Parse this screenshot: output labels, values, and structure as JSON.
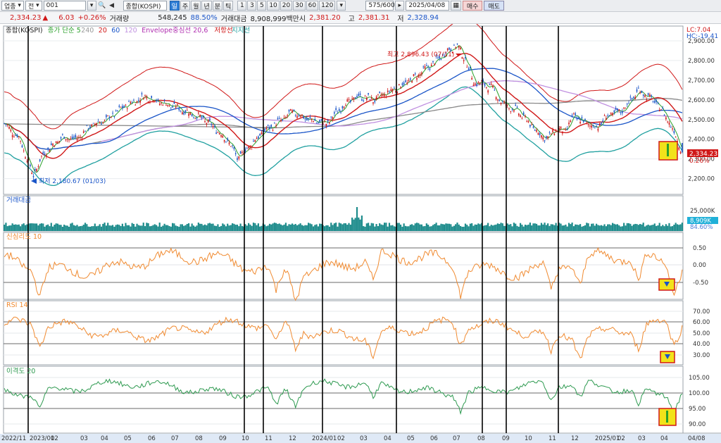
{
  "toolbar": {
    "category": "업종",
    "period": "전",
    "code": "001",
    "name": "종합(KOSPI)",
    "tabs": [
      "일",
      "주",
      "월",
      "년",
      "분",
      "틱"
    ],
    "active_tab": "일",
    "intervals": [
      "1",
      "3",
      "5",
      "10",
      "20",
      "30",
      "60",
      "120"
    ],
    "count": "575/600",
    "date": "2025/04/08",
    "buy_label": "매수",
    "sell_label": "매도"
  },
  "quote": {
    "price": "2,334.23",
    "arrow": "▲",
    "change": "6.03",
    "change_pct": "+0.26%",
    "volume_label": "거래량",
    "volume": "548,245",
    "volume_ratio": "88.50%",
    "amount_label": "거래대금",
    "amount": "8,908,999백만",
    "open_label": "시",
    "open": "2,381.20",
    "high_label": "고",
    "high": "2,381.31",
    "low_label": "저",
    "low": "2,328.94"
  },
  "price_panel": {
    "legend": [
      {
        "text": "종합(KOSPI)",
        "color": "#222222"
      },
      {
        "text": "종가 단순 5",
        "color": "#2aa02a"
      },
      {
        "text": "240",
        "color": "#9a9a9a"
      },
      {
        "text": "20",
        "color": "#d01818"
      },
      {
        "text": "60",
        "color": "#1a55c8"
      },
      {
        "text": "120",
        "color": "#c090e0"
      },
      {
        "text": "Envelope중심선 20,6",
        "color": "#b030b0"
      },
      {
        "text": "저항선",
        "color": "#d01818"
      },
      {
        "text": "지지선",
        "color": "#20a0a0"
      }
    ],
    "lc_label": "LC:7.04",
    "hc_label": "HC:-19.41",
    "y_ticks": [
      "2,900.00",
      "2,800.00",
      "2,700.00",
      "2,600.00",
      "2,500.00",
      "2,400.00",
      "2,300.00",
      "2,200.00"
    ],
    "y_values": [
      2900,
      2800,
      2700,
      2600,
      2500,
      2400,
      2300,
      2200
    ],
    "y_range": [
      2120,
      2975
    ],
    "high_annotation": "최고 2,896.43 (07/11)",
    "low_annotation": "최저 2,180.67 (01/03)",
    "last_price_tag": "2,334.23",
    "last_pct_tag": "0.26%"
  },
  "volume_panel": {
    "title": "거래대금",
    "y_tick": "25,000K",
    "tag_value": "8,909K",
    "tag_pct": "84.60%"
  },
  "psych_panel": {
    "title": "신심리도 10",
    "y_ticks": [
      "0.50",
      "0.00",
      "-0.50"
    ]
  },
  "rsi_panel": {
    "title": "RSI 14",
    "y_ticks": [
      "70.00",
      "60.00",
      "50.00",
      "40.00",
      "30.00"
    ]
  },
  "disparity_panel": {
    "title": "이격도 20",
    "y_ticks": [
      "105.00",
      "100.00",
      "95.00",
      "90.00"
    ]
  },
  "x_axis": {
    "labels": [
      "2022/11",
      "2023/01",
      "02",
      "03",
      "04",
      "05",
      "06",
      "07",
      "08",
      "09",
      "10",
      "11",
      "12",
      "2024/01",
      "02",
      "03",
      "04",
      "05",
      "06",
      "07",
      "08",
      "09",
      "10",
      "11",
      "12",
      "2025/01",
      "02",
      "03",
      "04",
      "04/08"
    ]
  },
  "colors": {
    "up_candle": "#d01818",
    "down_candle": "#1a55c8",
    "ma5": "#2aa02a",
    "ma20": "#d01818",
    "ma60": "#1a55c8",
    "ma120": "#c090e0",
    "ma240": "#8a8a8a",
    "resistance": "#d01818",
    "support": "#20a0a0",
    "volume_bars": "#1e8c8c",
    "oscillator": "#f08a30",
    "disparity": "#2e9a50",
    "highlight_box": "#f2e21a"
  }
}
